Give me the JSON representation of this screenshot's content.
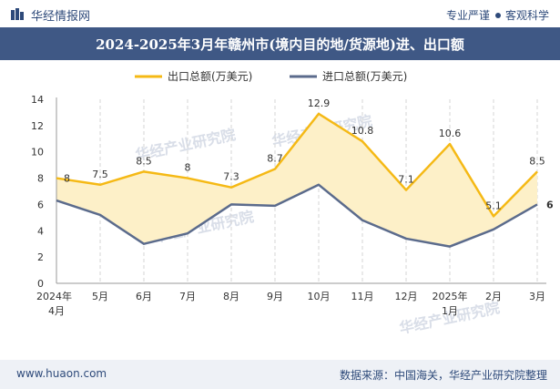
{
  "header": {
    "logo_text": "华经情报网",
    "tagline_left": "专业严谨",
    "tagline_right": "客观科学"
  },
  "footer": {
    "url": "www.huaon.com",
    "source": "数据来源：中国海关，华经产业研究院整理"
  },
  "watermark": "华经产业研究院",
  "colors": {
    "export": "#f5b915",
    "import": "#5b6b8c",
    "fill": "#fdf0c8",
    "titlebar": "#3f5885"
  },
  "chart_data": {
    "type": "line",
    "title": "2024-2025年3月年赣州市(境内目的地/货源地)进、出口额",
    "categories": [
      "2024年4月",
      "5月",
      "6月",
      "7月",
      "8月",
      "9月",
      "10月",
      "11月",
      "12月",
      "2025年1月",
      "2月",
      "3月"
    ],
    "category_lines": [
      [
        "2024年",
        "4月"
      ],
      [
        "5月"
      ],
      [
        "6月"
      ],
      [
        "7月"
      ],
      [
        "8月"
      ],
      [
        "9月"
      ],
      [
        "10月"
      ],
      [
        "11月"
      ],
      [
        "12月"
      ],
      [
        "2025年",
        "1月"
      ],
      [
        "2月"
      ],
      [
        "3月"
      ]
    ],
    "series": [
      {
        "name": "出口总额(万美元)",
        "values": [
          8,
          7.5,
          8.5,
          8,
          7.3,
          8.7,
          12.9,
          10.8,
          7.1,
          10.6,
          5.1,
          8.5
        ],
        "labels": [
          "8",
          "7.5",
          "8.5",
          "8",
          "7.3",
          "8.7",
          "12.9",
          "10.8",
          "7.1",
          "10.6",
          "5.1",
          "8.5"
        ]
      },
      {
        "name": "进口总额(万美元)",
        "values": [
          6.3,
          5.2,
          3.0,
          3.8,
          6.0,
          5.9,
          7.5,
          4.8,
          3.4,
          2.8,
          4.1,
          6
        ],
        "labels": [
          "",
          "",
          "",
          "",
          "",
          "",
          "",
          "",
          "",
          "",
          "",
          "6"
        ]
      }
    ],
    "ylim": [
      0,
      14
    ],
    "yticks": [
      "0",
      "2",
      "4",
      "6",
      "8",
      "10",
      "12",
      "14"
    ],
    "xlabel": "",
    "ylabel": "",
    "legend": "top-center",
    "grid": "vertical-dashed"
  }
}
